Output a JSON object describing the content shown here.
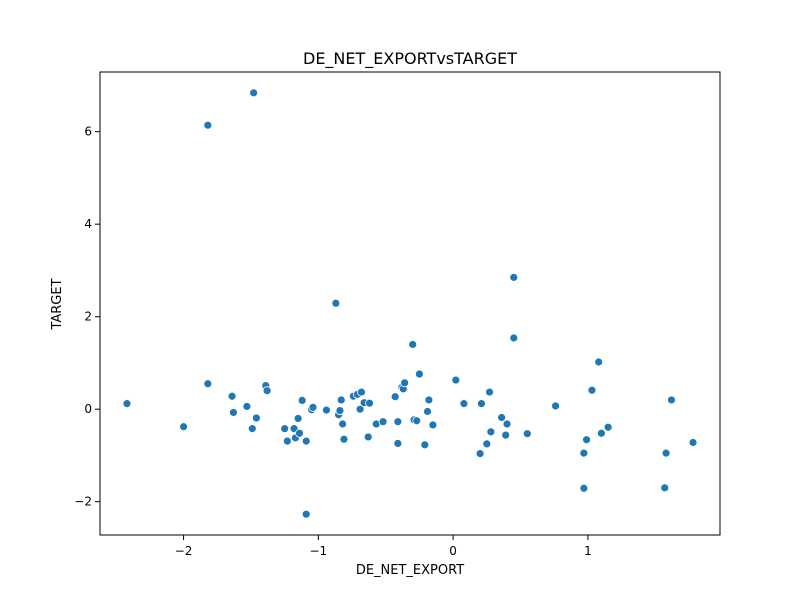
{
  "chart_data": {
    "type": "scatter",
    "title": "DE_NET_EXPORTvsTARGET",
    "xlabel": "DE_NET_EXPORT",
    "ylabel": "TARGET",
    "xlim": [
      -2.62,
      1.98
    ],
    "ylim": [
      -2.72,
      7.29
    ],
    "xticks": [
      -2,
      -1,
      0,
      1
    ],
    "yticks": [
      -2,
      0,
      2,
      4,
      6
    ],
    "xtick_labels": [
      "−2",
      "−1",
      "0",
      "1"
    ],
    "ytick_labels": [
      "−2",
      "0",
      "2",
      "4",
      "6"
    ],
    "grid": false,
    "marker_color": "#1f77b4",
    "points": [
      {
        "x": -2.42,
        "y": 0.12
      },
      {
        "x": -2.0,
        "y": -0.38
      },
      {
        "x": -1.82,
        "y": 6.14
      },
      {
        "x": -1.82,
        "y": 0.55
      },
      {
        "x": -1.48,
        "y": 6.84
      },
      {
        "x": -1.64,
        "y": 0.28
      },
      {
        "x": -1.63,
        "y": -0.07
      },
      {
        "x": -1.53,
        "y": 0.06
      },
      {
        "x": -1.49,
        "y": -0.42
      },
      {
        "x": -1.46,
        "y": -0.19
      },
      {
        "x": -1.39,
        "y": 0.51
      },
      {
        "x": -1.38,
        "y": 0.4
      },
      {
        "x": -1.25,
        "y": -0.42
      },
      {
        "x": -1.23,
        "y": -0.69
      },
      {
        "x": -1.18,
        "y": -0.42
      },
      {
        "x": -1.17,
        "y": -0.62
      },
      {
        "x": -1.15,
        "y": -0.2
      },
      {
        "x": -1.14,
        "y": -0.52
      },
      {
        "x": -1.12,
        "y": 0.19
      },
      {
        "x": -1.09,
        "y": -0.69
      },
      {
        "x": -1.09,
        "y": -2.27
      },
      {
        "x": -1.05,
        "y": -0.01
      },
      {
        "x": -1.04,
        "y": 0.04
      },
      {
        "x": -0.94,
        "y": -0.02
      },
      {
        "x": -0.87,
        "y": 2.29
      },
      {
        "x": -0.85,
        "y": -0.12
      },
      {
        "x": -0.84,
        "y": -0.03
      },
      {
        "x": -0.83,
        "y": 0.2
      },
      {
        "x": -0.82,
        "y": -0.32
      },
      {
        "x": -0.81,
        "y": -0.65
      },
      {
        "x": -0.74,
        "y": 0.28
      },
      {
        "x": -0.71,
        "y": 0.32
      },
      {
        "x": -0.69,
        "y": 0.0
      },
      {
        "x": -0.68,
        "y": 0.37
      },
      {
        "x": -0.66,
        "y": 0.14
      },
      {
        "x": -0.63,
        "y": -0.6
      },
      {
        "x": -0.62,
        "y": 0.13
      },
      {
        "x": -0.57,
        "y": -0.32
      },
      {
        "x": -0.52,
        "y": -0.27
      },
      {
        "x": -0.43,
        "y": 0.27
      },
      {
        "x": -0.41,
        "y": -0.74
      },
      {
        "x": -0.41,
        "y": -0.27
      },
      {
        "x": -0.38,
        "y": 0.47
      },
      {
        "x": -0.37,
        "y": 0.44
      },
      {
        "x": -0.36,
        "y": 0.57
      },
      {
        "x": -0.3,
        "y": 1.4
      },
      {
        "x": -0.29,
        "y": -0.23
      },
      {
        "x": -0.27,
        "y": -0.25
      },
      {
        "x": -0.25,
        "y": 0.76
      },
      {
        "x": -0.21,
        "y": -0.77
      },
      {
        "x": -0.19,
        "y": -0.05
      },
      {
        "x": -0.18,
        "y": 0.2
      },
      {
        "x": -0.15,
        "y": -0.34
      },
      {
        "x": 0.02,
        "y": 0.63
      },
      {
        "x": 0.08,
        "y": 0.12
      },
      {
        "x": 0.2,
        "y": -0.96
      },
      {
        "x": 0.21,
        "y": 0.12
      },
      {
        "x": 0.25,
        "y": -0.75
      },
      {
        "x": 0.27,
        "y": 0.37
      },
      {
        "x": 0.28,
        "y": -0.49
      },
      {
        "x": 0.36,
        "y": -0.18
      },
      {
        "x": 0.39,
        "y": -0.56
      },
      {
        "x": 0.4,
        "y": -0.32
      },
      {
        "x": 0.45,
        "y": 2.85
      },
      {
        "x": 0.45,
        "y": 1.54
      },
      {
        "x": 0.55,
        "y": -0.53
      },
      {
        "x": 0.76,
        "y": 0.07
      },
      {
        "x": 0.97,
        "y": -0.95
      },
      {
        "x": 0.97,
        "y": -1.71
      },
      {
        "x": 0.99,
        "y": -0.66
      },
      {
        "x": 1.03,
        "y": 0.41
      },
      {
        "x": 1.08,
        "y": 1.02
      },
      {
        "x": 1.1,
        "y": -0.52
      },
      {
        "x": 1.15,
        "y": -0.39
      },
      {
        "x": 1.57,
        "y": -1.7
      },
      {
        "x": 1.58,
        "y": -0.95
      },
      {
        "x": 1.62,
        "y": 0.2
      },
      {
        "x": 1.78,
        "y": -0.72
      }
    ]
  }
}
